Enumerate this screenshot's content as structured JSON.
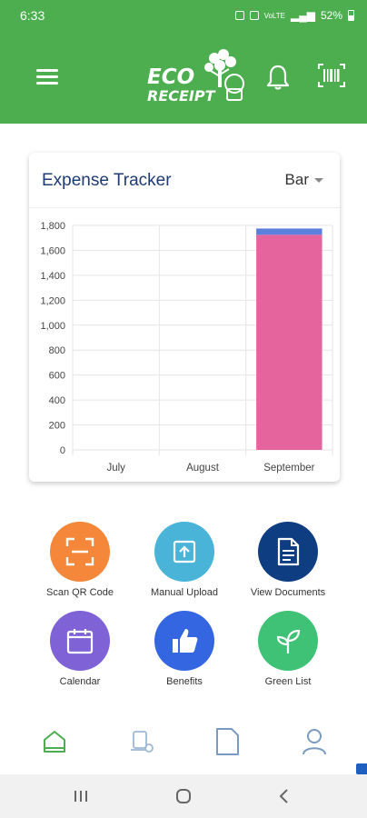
{
  "status_bar": {
    "time": "6:33",
    "battery": "52%",
    "signal_text": "VoLTE"
  },
  "app_bar": {
    "logo_top": "ECO",
    "logo_bottom": "RECEIPT"
  },
  "expense_card": {
    "title": "Expense Tracker",
    "chart_type_selected": "Bar"
  },
  "chart_data": {
    "type": "bar",
    "stacked": true,
    "categories": [
      "July",
      "August",
      "September"
    ],
    "series": [
      {
        "values": [
          0,
          0,
          1725
        ],
        "color": "#e5649e"
      },
      {
        "values": [
          0,
          0,
          50
        ],
        "color": "#5b7fdc"
      }
    ],
    "y_ticks": [
      "0",
      "200",
      "400",
      "600",
      "800",
      "1,000",
      "1,200",
      "1,400",
      "1,600",
      "1,800"
    ],
    "ylim": [
      0,
      1800
    ],
    "grid": true
  },
  "actions": [
    {
      "label": "Scan QR Code",
      "color": "#f5873a",
      "icon": "scan-icon"
    },
    {
      "label": "Manual Upload",
      "color": "#4ab4d8",
      "icon": "upload-icon"
    },
    {
      "label": "View Documents",
      "color": "#0f3d82",
      "icon": "document-icon"
    },
    {
      "label": "Calendar",
      "color": "#7e62d6",
      "icon": "calendar-icon"
    },
    {
      "label": "Benefits",
      "color": "#3366e0",
      "icon": "thumbs-up-icon"
    },
    {
      "label": "Green List",
      "color": "#3fc176",
      "icon": "sprout-icon"
    }
  ],
  "colors": {
    "brand_green": "#4cae4f",
    "nav_active": "#4cae4f",
    "nav_inactive": "#7a9bbf"
  }
}
